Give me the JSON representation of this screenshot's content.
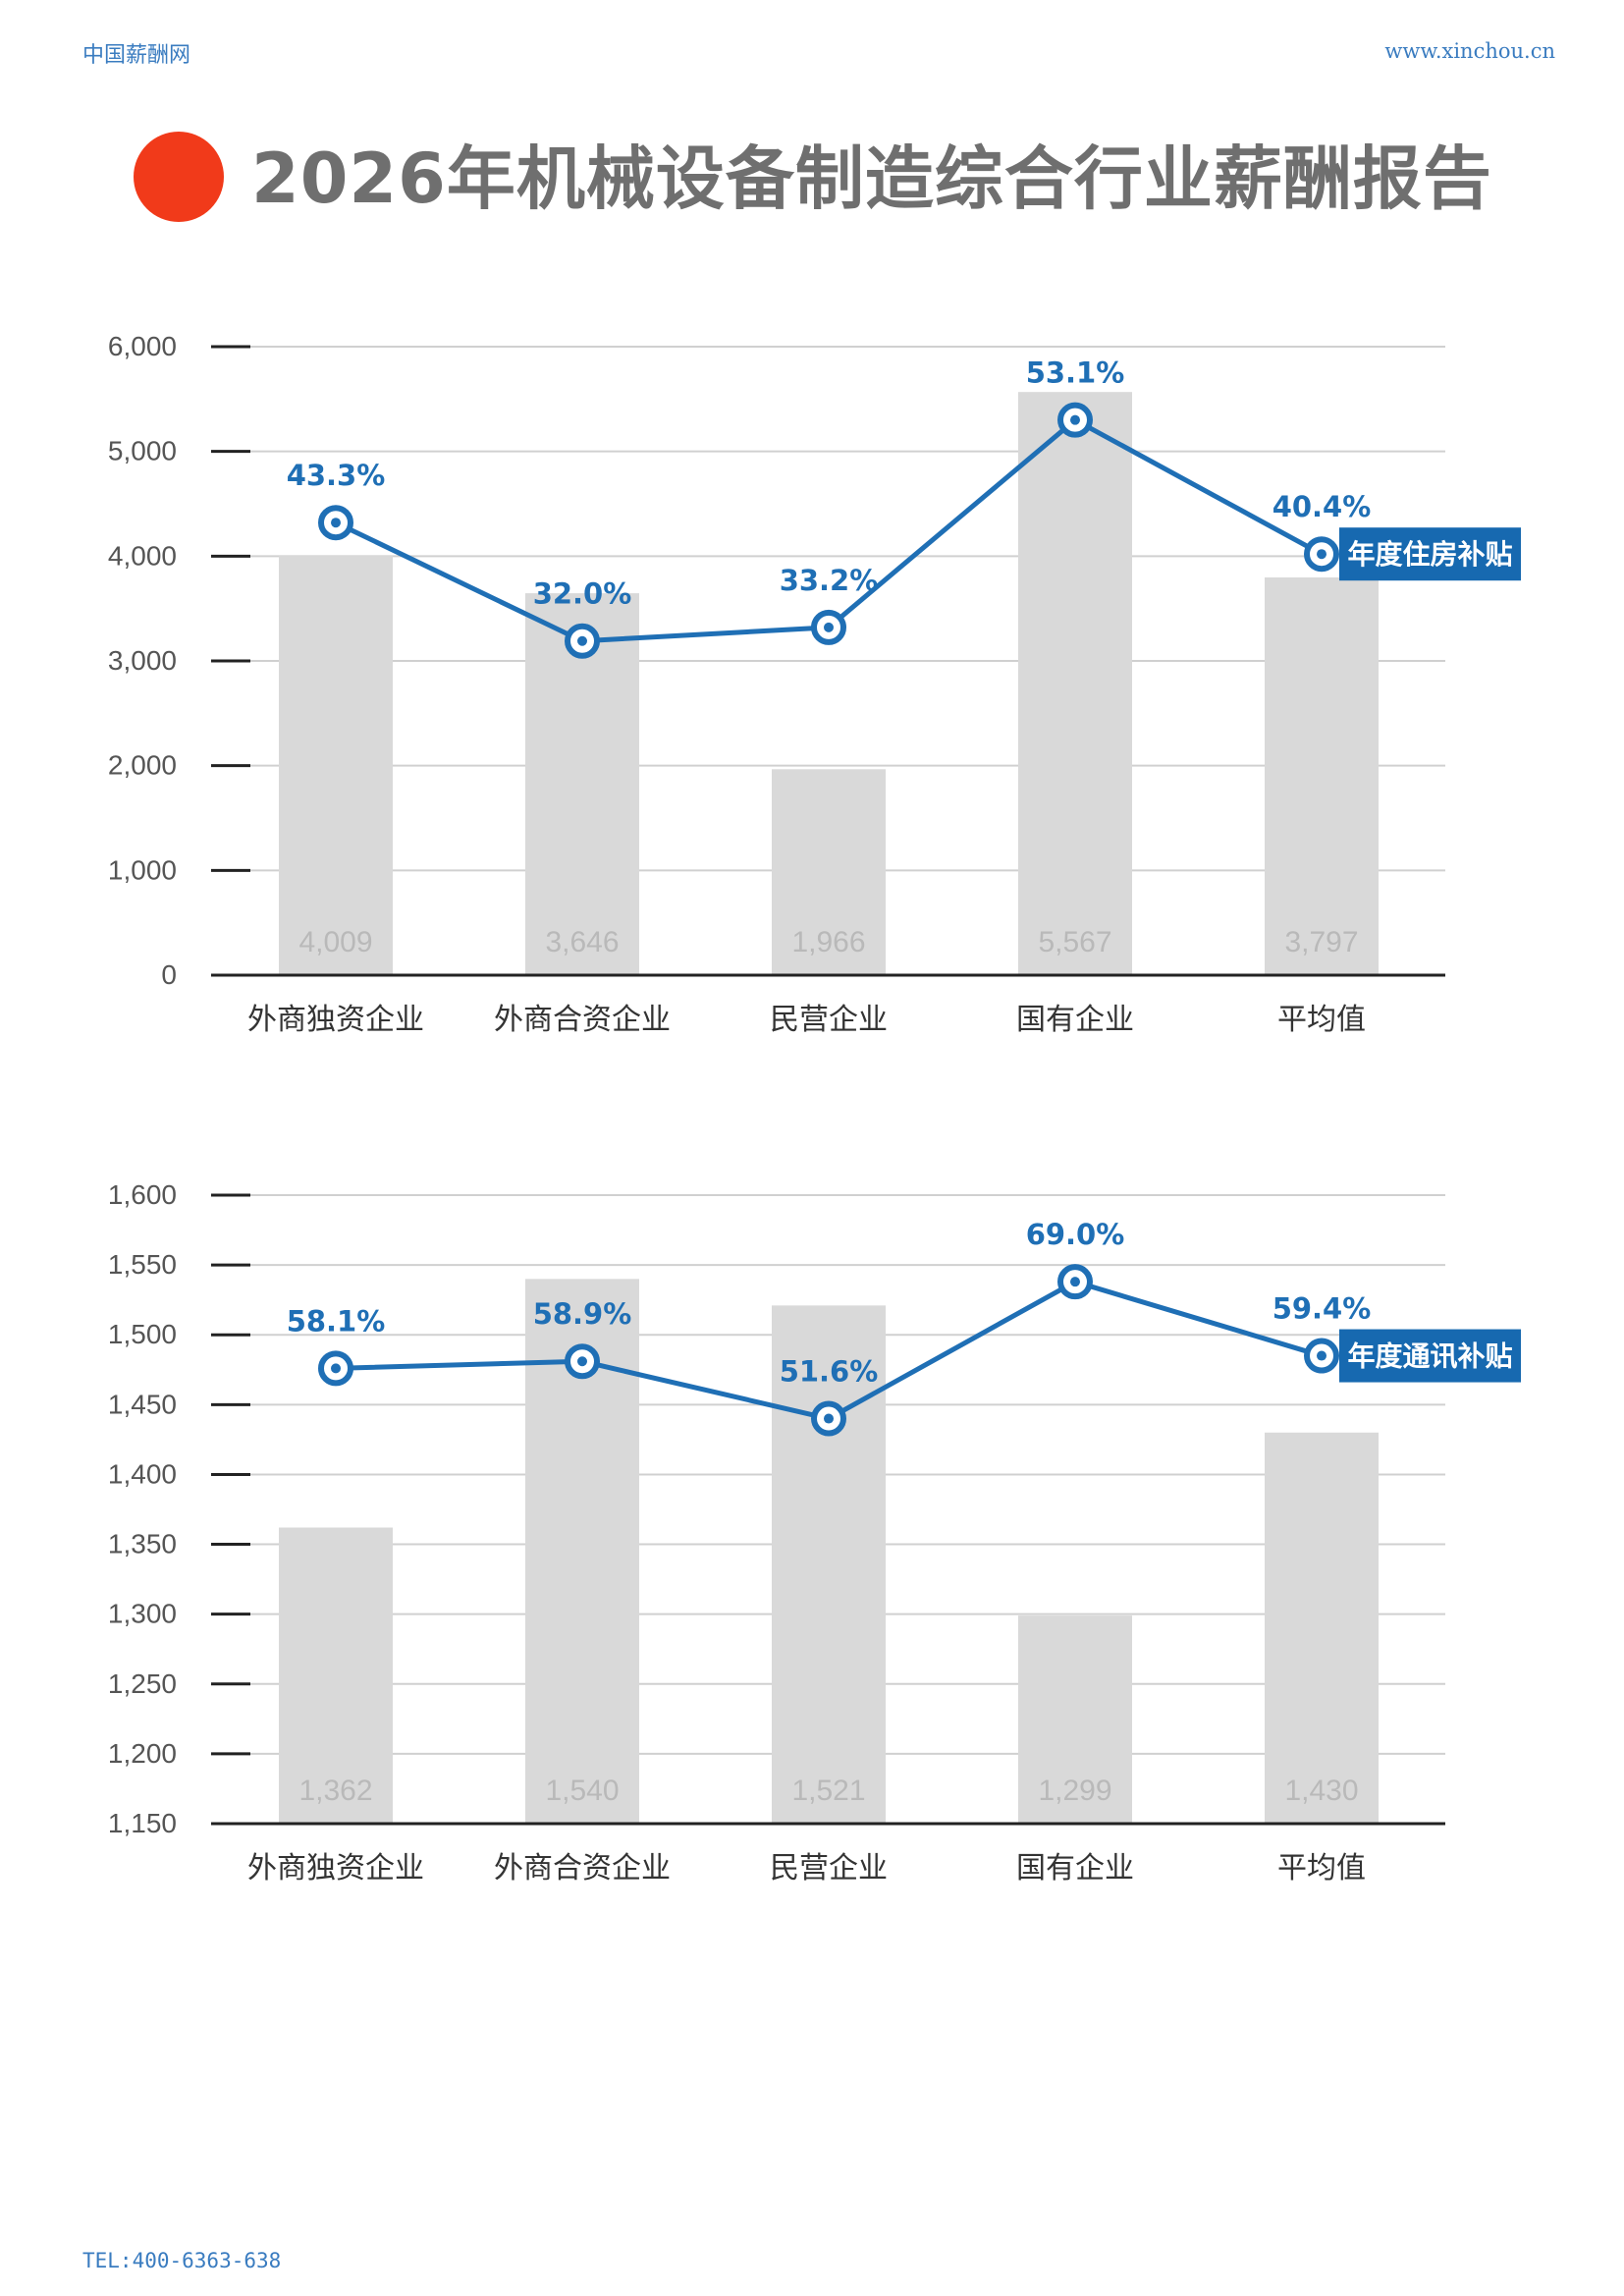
{
  "header": {
    "brand": "中国薪酬网",
    "url": "www.xinchou.cn"
  },
  "title": "2026年机械设备制造综合行业薪酬报告",
  "footer": {
    "tel": "TEL:400-6363-638"
  },
  "colors": {
    "bar": "#d9d9d9",
    "line": "#1f6fb5",
    "title_dot": "#f13a1a",
    "label_box": "#1769b0"
  },
  "chart_data": [
    {
      "type": "bar",
      "categories": [
        "外商独资企业",
        "外商合资企业",
        "民营企业",
        "国有企业",
        "平均值"
      ],
      "values": [
        4009,
        3646,
        1966,
        5567,
        3797
      ],
      "value_labels": [
        "4,009",
        "3,646",
        "1,966",
        "5,567",
        "3,797"
      ],
      "ylim": [
        0,
        6000
      ],
      "yticks": [
        0,
        1000,
        2000,
        3000,
        4000,
        5000,
        6000
      ],
      "ytick_labels": [
        "0",
        "1,000",
        "2,000",
        "3,000",
        "4,000",
        "5,000",
        "6,000"
      ],
      "grid": true,
      "line_series": {
        "name": "年度住房补贴",
        "percent_labels": [
          "43.3%",
          "32.0%",
          "33.2%",
          "53.1%",
          "40.4%"
        ],
        "values": [
          4320,
          3190,
          3320,
          5300,
          4020
        ]
      }
    },
    {
      "type": "bar",
      "categories": [
        "外商独资企业",
        "外商合资企业",
        "民营企业",
        "国有企业",
        "平均值"
      ],
      "values": [
        1362,
        1540,
        1521,
        1299,
        1430
      ],
      "value_labels": [
        "1,362",
        "1,540",
        "1,521",
        "1,299",
        "1,430"
      ],
      "ylim": [
        1150,
        1600
      ],
      "yticks": [
        1150,
        1200,
        1250,
        1300,
        1350,
        1400,
        1450,
        1500,
        1550,
        1600
      ],
      "ytick_labels": [
        "1,150",
        "1,200",
        "1,250",
        "1,300",
        "1,350",
        "1,400",
        "1,450",
        "1,500",
        "1,550",
        "1,600"
      ],
      "grid": true,
      "line_series": {
        "name": "年度通讯补贴",
        "percent_labels": [
          "58.1%",
          "58.9%",
          "51.6%",
          "69.0%",
          "59.4%"
        ],
        "values": [
          1476,
          1481,
          1440,
          1538,
          1485
        ]
      }
    }
  ]
}
